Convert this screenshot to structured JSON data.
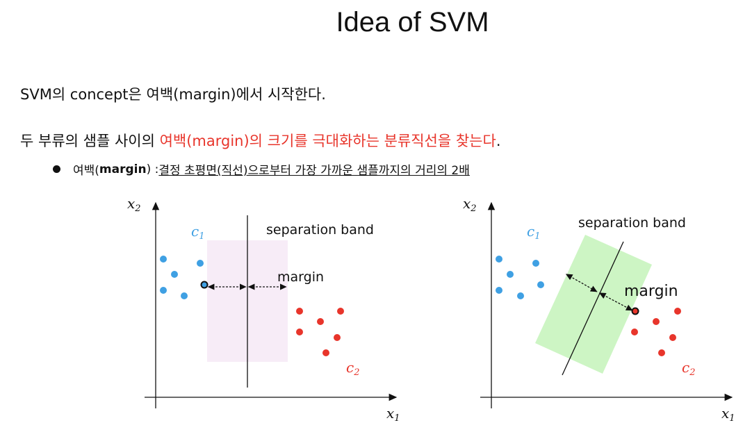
{
  "title": "Idea of SVM",
  "line1": "SVM의 concept은 여백(margin)에서 시작한다.",
  "line2": {
    "prefix": "두 부류의 샘플 사이의 ",
    "highlight": "여백(margin)의 크기를 극대화하는 분류직선을 찾는다",
    "suffix": "."
  },
  "bullet": {
    "prefix": "여백(",
    "bold": "margin",
    "middle": ") : ",
    "underlined": "결정 초평면(직선)으로부터 가장 가까운 샘플까지의 거리의 2배"
  },
  "colors": {
    "c1": "#3fa0e3",
    "c2": "#e8352b",
    "band_left": "#f7ecf7",
    "band_right": "#cdf5c4",
    "highlight": "#e8352b"
  },
  "diagrams": [
    {
      "band_label": "separation band",
      "margin_label": "margin",
      "class1_label": {
        "base": "c",
        "sub": "1"
      },
      "class2_label": {
        "base": "c",
        "sub": "2"
      },
      "x_axis_label": {
        "base": "x",
        "sub": "1"
      },
      "y_axis_label": {
        "base": "x",
        "sub": "2"
      }
    },
    {
      "band_label": "separation band",
      "margin_label": "margin",
      "class1_label": {
        "base": "c",
        "sub": "1"
      },
      "class2_label": {
        "base": "c",
        "sub": "2"
      },
      "x_axis_label": {
        "base": "x",
        "sub": "1"
      },
      "y_axis_label": {
        "base": "x",
        "sub": "2"
      }
    }
  ]
}
